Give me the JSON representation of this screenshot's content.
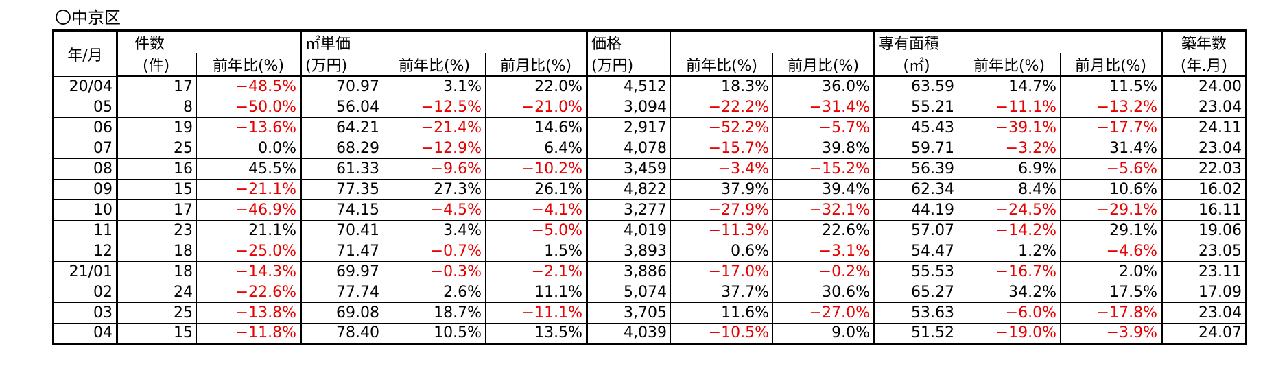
{
  "title": "〇中京区",
  "header": {
    "month": "年/月",
    "count": "件数",
    "count_unit": "(件)",
    "unit_price": "㎡単価",
    "unit_price_unit": "(万円)",
    "price": "価格",
    "price_unit": "(万円)",
    "area": "専有面積",
    "area_unit": "(㎡)",
    "age": "築年数",
    "age_unit": "(年.月)",
    "yoy": "前年比(%)",
    "mom": "前月比(%)"
  },
  "rows": [
    [
      "20/04",
      "17",
      "−48.5%",
      "70.97",
      "3.1%",
      "22.0%",
      "4,512",
      "18.3%",
      "36.0%",
      "63.59",
      "14.7%",
      "11.5%",
      "24.00"
    ],
    [
      "05",
      "8",
      "−50.0%",
      "56.04",
      "−12.5%",
      "−21.0%",
      "3,094",
      "−22.2%",
      "−31.4%",
      "55.21",
      "−11.1%",
      "−13.2%",
      "23.04"
    ],
    [
      "06",
      "19",
      "−13.6%",
      "64.21",
      "−21.4%",
      "14.6%",
      "2,917",
      "−52.2%",
      "−5.7%",
      "45.43",
      "−39.1%",
      "−17.7%",
      "24.11"
    ],
    [
      "07",
      "25",
      "0.0%",
      "68.29",
      "−12.9%",
      "6.4%",
      "4,078",
      "−15.7%",
      "39.8%",
      "59.71",
      "−3.2%",
      "31.4%",
      "23.04"
    ],
    [
      "08",
      "16",
      "45.5%",
      "61.33",
      "−9.6%",
      "−10.2%",
      "3,459",
      "−3.4%",
      "−15.2%",
      "56.39",
      "6.9%",
      "−5.6%",
      "22.03"
    ],
    [
      "09",
      "15",
      "−21.1%",
      "77.35",
      "27.3%",
      "26.1%",
      "4,822",
      "37.9%",
      "39.4%",
      "62.34",
      "8.4%",
      "10.6%",
      "16.02"
    ],
    [
      "10",
      "17",
      "−46.9%",
      "74.15",
      "−4.5%",
      "−4.1%",
      "3,277",
      "−27.9%",
      "−32.1%",
      "44.19",
      "−24.5%",
      "−29.1%",
      "16.11"
    ],
    [
      "11",
      "23",
      "21.1%",
      "70.41",
      "3.4%",
      "−5.0%",
      "4,019",
      "−11.3%",
      "22.6%",
      "57.07",
      "−14.2%",
      "29.1%",
      "19.06"
    ],
    [
      "12",
      "18",
      "−25.0%",
      "71.47",
      "−0.7%",
      "1.5%",
      "3,893",
      "0.6%",
      "−3.1%",
      "54.47",
      "1.2%",
      "−4.6%",
      "23.05"
    ],
    [
      "21/01",
      "18",
      "−14.3%",
      "69.97",
      "−0.3%",
      "−2.1%",
      "3,886",
      "−17.0%",
      "−0.2%",
      "55.53",
      "−16.7%",
      "2.0%",
      "23.11"
    ],
    [
      "02",
      "24",
      "−22.6%",
      "77.74",
      "2.6%",
      "11.1%",
      "5,074",
      "37.7%",
      "30.6%",
      "65.27",
      "34.2%",
      "17.5%",
      "17.09"
    ],
    [
      "03",
      "25",
      "−13.8%",
      "69.08",
      "18.7%",
      "−11.1%",
      "3,705",
      "11.6%",
      "−27.0%",
      "53.63",
      "−6.0%",
      "−17.8%",
      "23.04"
    ],
    [
      "04",
      "15",
      "−11.8%",
      "78.40",
      "10.5%",
      "13.5%",
      "4,039",
      "−10.5%",
      "9.0%",
      "51.52",
      "−19.0%",
      "−3.9%",
      "24.07"
    ]
  ]
}
